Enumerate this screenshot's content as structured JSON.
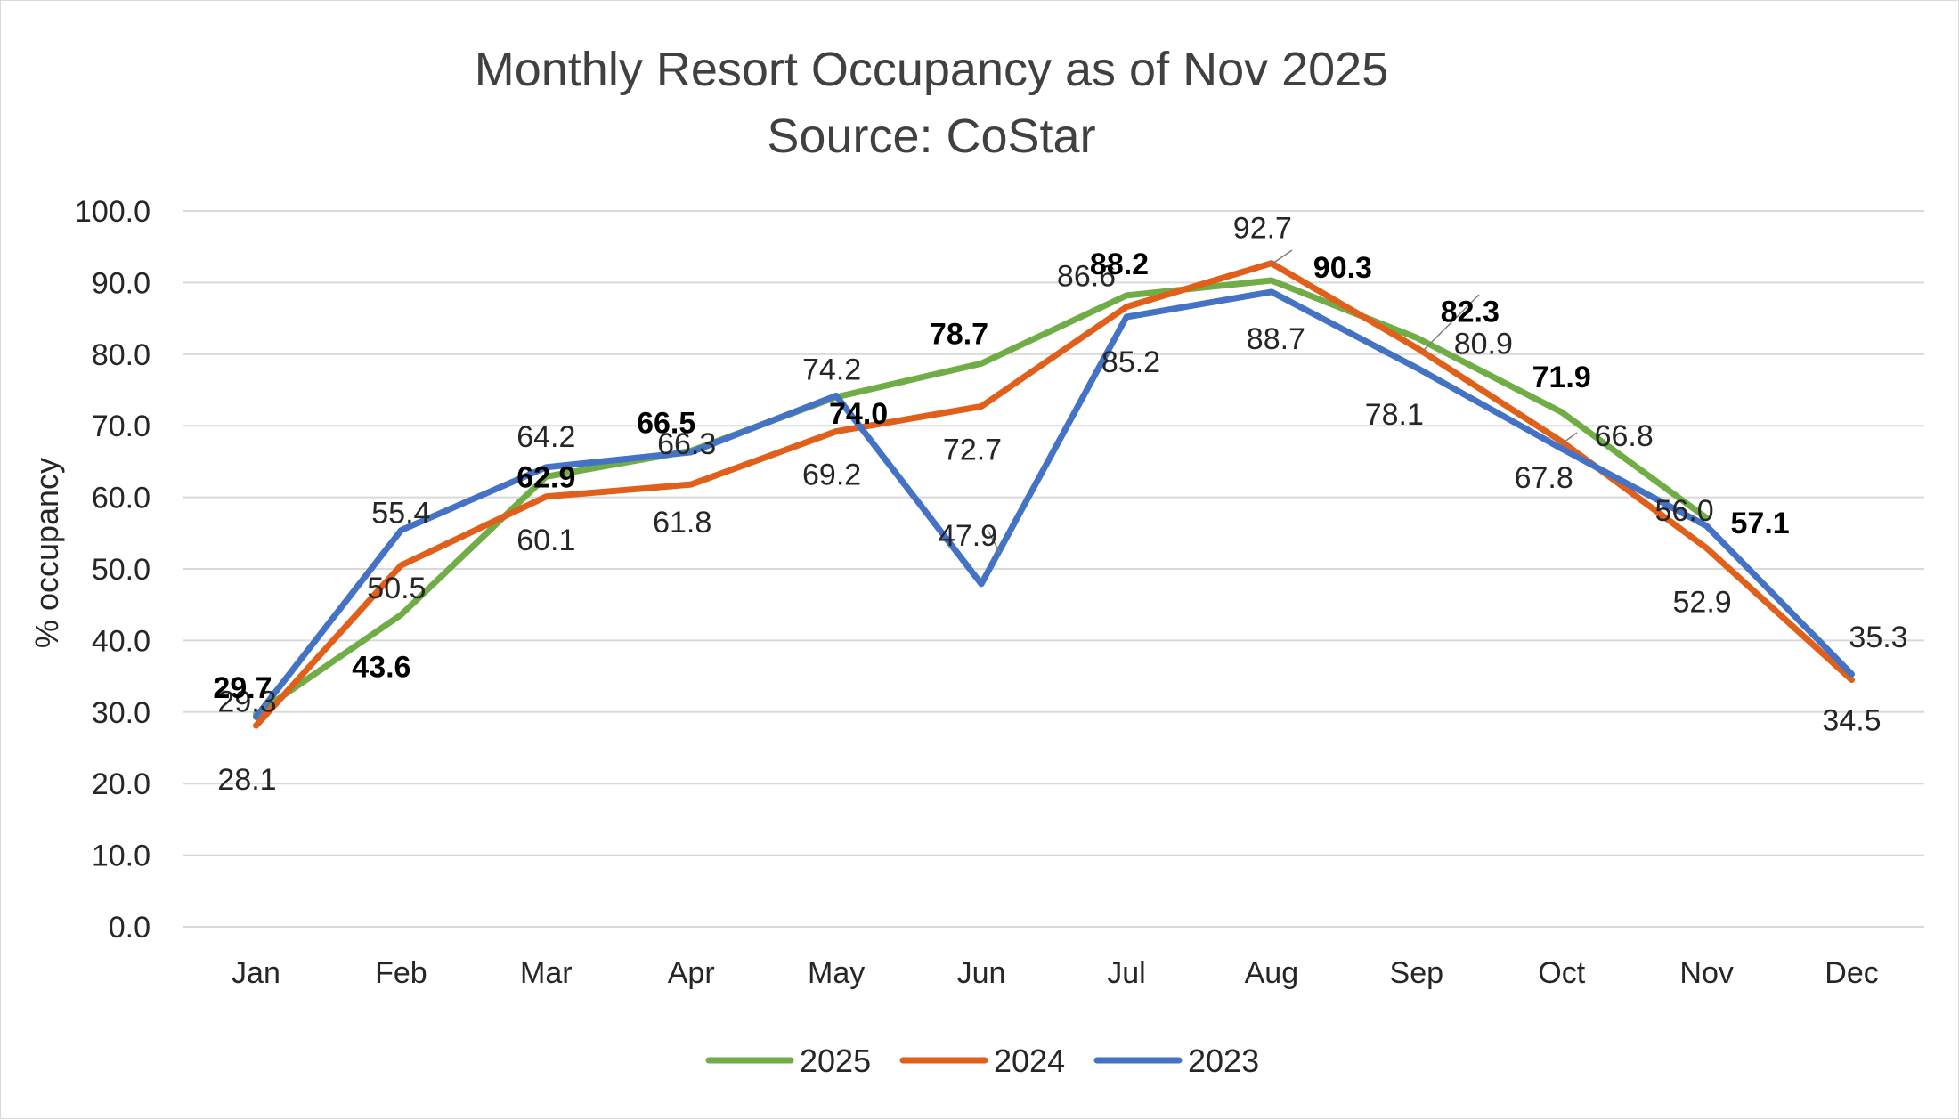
{
  "chart_data": {
    "type": "line",
    "title": "Monthly Resort Occupancy as of Nov 2025",
    "subtitle": "Source: CoStar",
    "xlabel": "",
    "ylabel": "% occupancy",
    "ylim": [
      0,
      100
    ],
    "yticks": [
      "0.0",
      "10.0",
      "20.0",
      "30.0",
      "40.0",
      "50.0",
      "60.0",
      "70.0",
      "80.0",
      "90.0",
      "100.0"
    ],
    "grid": true,
    "legend_position": "bottom",
    "categories": [
      "Jan",
      "Feb",
      "Mar",
      "Apr",
      "May",
      "Jun",
      "Jul",
      "Aug",
      "Sep",
      "Oct",
      "Nov",
      "Dec"
    ],
    "series": [
      {
        "name": "2025",
        "color": "#70ad47",
        "labels_bold": true,
        "values": [
          29.7,
          43.6,
          62.9,
          66.5,
          74.0,
          78.7,
          88.2,
          90.3,
          82.3,
          71.9,
          57.1,
          null
        ]
      },
      {
        "name": "2024",
        "color": "#e0601b",
        "labels_bold": false,
        "values": [
          28.1,
          50.5,
          60.1,
          61.8,
          69.2,
          72.7,
          86.6,
          92.7,
          80.9,
          67.8,
          52.9,
          34.5
        ]
      },
      {
        "name": "2023",
        "color": "#4472c4",
        "labels_bold": false,
        "values": [
          29.3,
          55.4,
          64.2,
          66.3,
          74.2,
          47.9,
          85.2,
          88.7,
          78.1,
          66.8,
          56.0,
          35.3
        ]
      }
    ]
  }
}
